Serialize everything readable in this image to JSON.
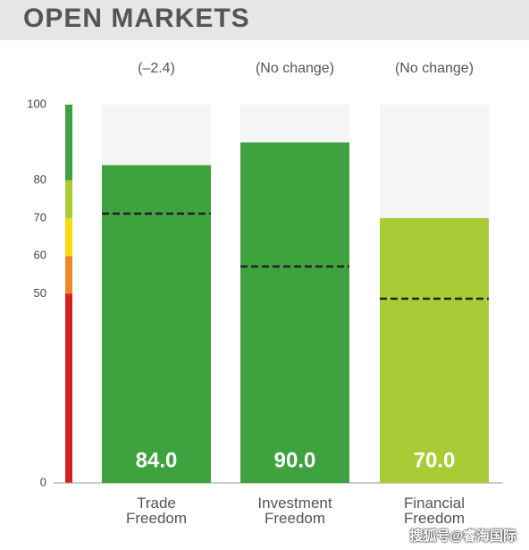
{
  "chart_data": {
    "type": "bar",
    "title": "OPEN MARKETS",
    "categories": [
      "Trade Freedom",
      "Investment Freedom",
      "Financial Freedom"
    ],
    "values": [
      84.0,
      90.0,
      70.0
    ],
    "value_labels": [
      "84.0",
      "90.0",
      "70.0"
    ],
    "colors": [
      "#3ea33e",
      "#3ea33e",
      "#a9cc36"
    ],
    "changes": [
      "(–2.4)",
      "(No change)",
      "(No change)"
    ],
    "world_average": [
      71.2,
      57.2,
      48.7
    ],
    "ylim": [
      0,
      100
    ],
    "yticks": [
      0,
      50,
      60,
      70,
      80,
      100
    ],
    "scale": [
      {
        "from": 0,
        "to": 50,
        "color": "#d3231e"
      },
      {
        "from": 50,
        "to": 60,
        "color": "#f0862a"
      },
      {
        "from": 60,
        "to": 70,
        "color": "#fbd90f"
      },
      {
        "from": 70,
        "to": 80,
        "color": "#a9cc36"
      },
      {
        "from": 80,
        "to": 100,
        "color": "#3ea33e"
      }
    ],
    "watermark": "搜狐号@睿海国际"
  }
}
